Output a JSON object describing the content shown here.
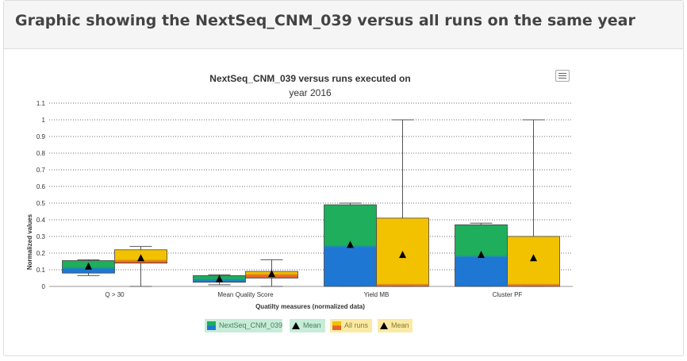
{
  "page": {
    "heading": "Graphic showing the NextSeq_CNM_039 versus all runs on the same year"
  },
  "chart_data": {
    "type": "boxplot",
    "title": "NextSeq_CNM_039 versus runs executed on",
    "subtitle": "year 2016",
    "xlabel": "Quatilty measures (normalized data)",
    "ylabel": "Normalized values",
    "ylim": [
      0,
      1.1
    ],
    "yticks": [
      "0",
      "0.1",
      "0.2",
      "0.3",
      "0.4",
      "0.5",
      "0.6",
      "0.7",
      "0.8",
      "0.9",
      "1",
      "1.1"
    ],
    "grid": true,
    "legend_position": "bottom",
    "categories": [
      "Q > 30",
      "Mean Quality Score",
      "Yield MB",
      "Cluster PF"
    ],
    "series": [
      {
        "name": "NextSeq_CNM_039",
        "colors": {
          "lower": "#1f77d4",
          "upper": "#1fae5c",
          "median": "#1f8fa8"
        },
        "boxes": [
          {
            "low": 0.065,
            "q1": 0.08,
            "median": 0.11,
            "q3": 0.155,
            "high": 0.16,
            "mean": 0.12
          },
          {
            "low": 0.01,
            "q1": 0.025,
            "median": 0.04,
            "q3": 0.065,
            "high": 0.07,
            "mean": 0.045
          },
          {
            "low": 0.0,
            "q1": 0.0,
            "median": 0.24,
            "q3": 0.49,
            "high": 0.5,
            "mean": 0.25
          },
          {
            "low": 0.0,
            "q1": 0.0,
            "median": 0.18,
            "q3": 0.37,
            "high": 0.38,
            "mean": 0.19
          }
        ]
      },
      {
        "name": "All runs",
        "colors": {
          "lower": "#e8632a",
          "upper": "#f2c200",
          "median": "#e08a17"
        },
        "boxes": [
          {
            "low": 0.0,
            "q1": 0.14,
            "median": 0.155,
            "q3": 0.22,
            "high": 0.24,
            "mean": 0.17
          },
          {
            "low": 0.0,
            "q1": 0.05,
            "median": 0.07,
            "q3": 0.09,
            "high": 0.16,
            "mean": 0.075
          },
          {
            "low": 0.0,
            "q1": 0.0,
            "median": 0.01,
            "q3": 0.41,
            "high": 1.0,
            "mean": 0.19
          },
          {
            "low": 0.0,
            "q1": 0.0,
            "median": 0.01,
            "q3": 0.3,
            "high": 1.0,
            "mean": 0.17
          }
        ]
      }
    ],
    "legend": [
      {
        "label": "NextSeq_CNM_039",
        "symbol": "box",
        "series": 0,
        "bg": "#c7ecd8"
      },
      {
        "label": "Mean",
        "symbol": "triangle",
        "series": 0,
        "bg": "#c7ecd8"
      },
      {
        "label": "All runs",
        "symbol": "box",
        "series": 1,
        "bg": "#fbeaa3"
      },
      {
        "label": "Mean",
        "symbol": "triangle",
        "series": 1,
        "bg": "#fbeaa3"
      }
    ]
  }
}
